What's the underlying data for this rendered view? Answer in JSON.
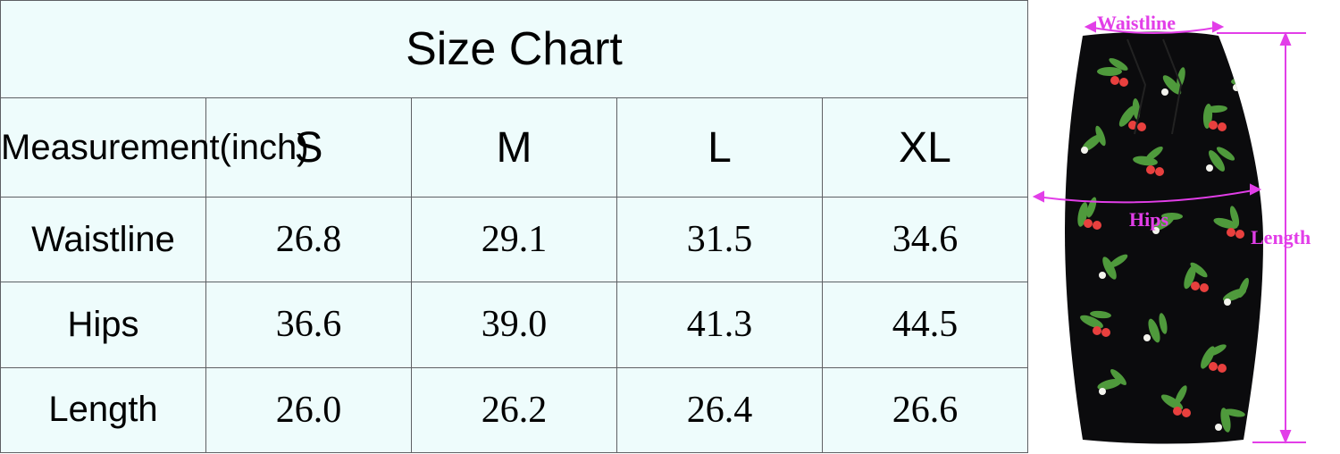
{
  "size_chart": {
    "title": "Size Chart",
    "measurement_header": "Measurement(inch)",
    "sizes": [
      "S",
      "M",
      "L",
      "XL"
    ],
    "rows": [
      {
        "label": "Waistline",
        "values": [
          "26.8",
          "29.1",
          "31.5",
          "34.6"
        ]
      },
      {
        "label": "Hips",
        "values": [
          "36.6",
          "39.0",
          "41.3",
          "44.5"
        ]
      },
      {
        "label": "Length",
        "values": [
          "26.0",
          "26.2",
          "26.4",
          "26.6"
        ]
      }
    ]
  },
  "diagram": {
    "labels": {
      "waistline": "Waistline",
      "hips": "Hips",
      "length": "Length"
    },
    "measure_color": "#e23ee8",
    "skirt_color": "#0b0b0d",
    "print_leaf_color": "#4f9a3c",
    "print_cherry_color": "#e8403e"
  }
}
